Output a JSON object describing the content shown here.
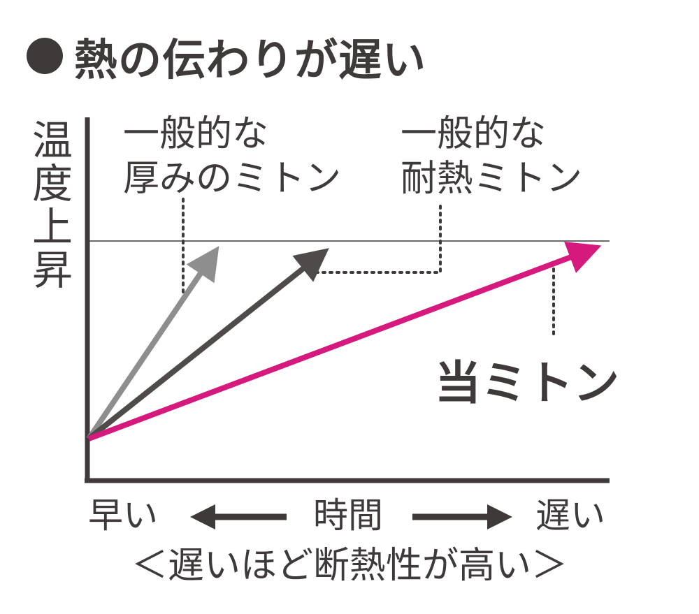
{
  "title": "熱の伝わりが遅い",
  "y_axis_label": [
    "温",
    "度",
    "上",
    "昇"
  ],
  "labels": {
    "thick_mitten": [
      "一般的な",
      "厚みのミトン"
    ],
    "heat_mitten": [
      "一般的な",
      "耐熱ミトン"
    ],
    "our_mitten": "当ミトン"
  },
  "x_axis": {
    "left": "早い",
    "center": "時間",
    "right": "遅い"
  },
  "note": "＜遅いほど断熱性が高い＞",
  "colors": {
    "text": "#3d3a39",
    "thick_mitten": "#8e8e8e",
    "heat_mitten": "#4e4b4a",
    "our_mitten": "#d6197c"
  }
}
